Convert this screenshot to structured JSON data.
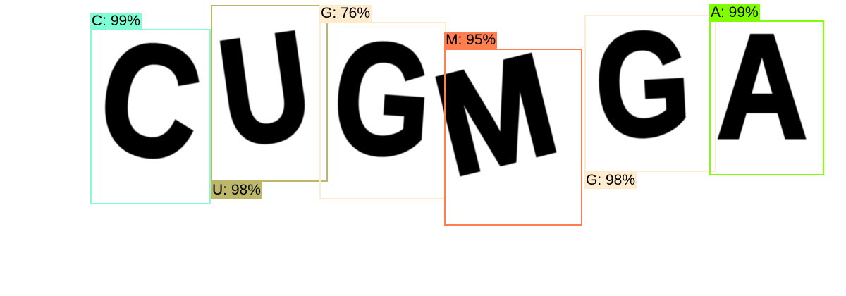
{
  "detections": [
    {
      "char": "C",
      "label": "C: 99%",
      "color": "#7fffd4"
    },
    {
      "char": "U",
      "label": "U: 98%",
      "color": "#bdb76b"
    },
    {
      "char": "G",
      "label": "G: 76%",
      "color": "#ffebcd"
    },
    {
      "char": "M",
      "label": "M: 95%",
      "color": "#ff7f50"
    },
    {
      "char": "G",
      "label": "G: 98%",
      "color": "#ffebcd"
    },
    {
      "char": "A",
      "label": "A: 99%",
      "color": "#7fff00"
    }
  ]
}
